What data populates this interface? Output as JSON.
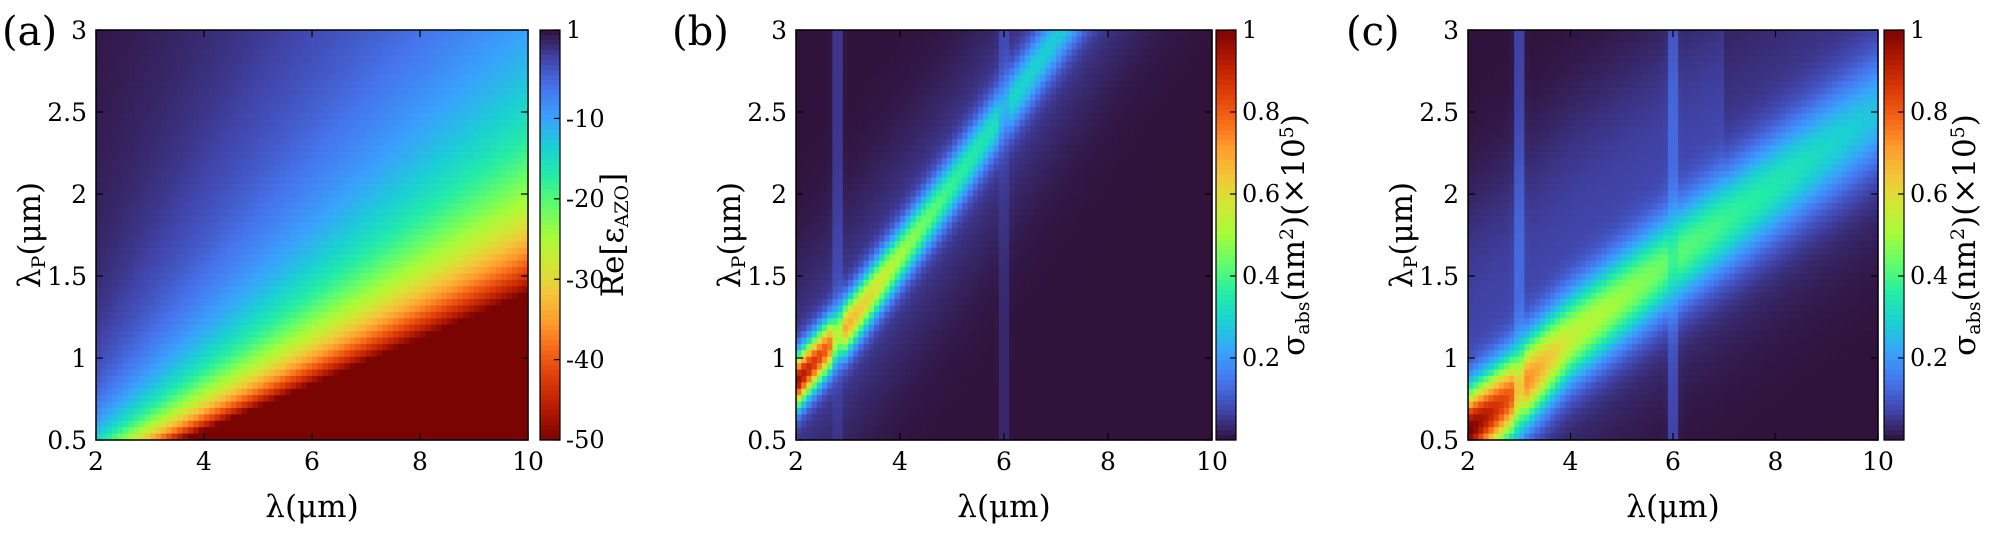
{
  "colormap": [
    "#30123b",
    "#4145ab",
    "#4675ed",
    "#39a2fc",
    "#1bcfd4",
    "#24eca6",
    "#61fc6c",
    "#a4fc3b",
    "#d1e834",
    "#f3c63a",
    "#fe9b2d",
    "#f36315",
    "#d93806",
    "#b11901",
    "#7a0402"
  ],
  "chart_data": [
    {
      "type": "heatmap",
      "panel_label": "(a)",
      "xlabel": "λ(μm)",
      "ylabel": "λP(μm)",
      "ylabel_main": "λ",
      "ylabel_sub": "P",
      "ylabel_rest": "(μm)",
      "xlim": [
        2,
        10
      ],
      "ylim": [
        0.5,
        3
      ],
      "xticks": [
        "2",
        "4",
        "6",
        "8",
        "10"
      ],
      "yticks": [
        "0.5",
        "1",
        "1.5",
        "2",
        "2.5",
        "3"
      ],
      "colorbar": {
        "label": "Re[εAZO]",
        "label_main": "Re[ε",
        "label_sub": "AZO",
        "label_rest": "]",
        "range": [
          -50,
          1
        ],
        "ticks": [
          "1",
          "-10",
          "-20",
          "-30",
          "-40",
          "-50"
        ],
        "tick_values": [
          1,
          -10,
          -20,
          -30,
          -40,
          -50
        ]
      },
      "model": "permittivity"
    },
    {
      "type": "heatmap",
      "panel_label": "(b)",
      "xlabel": "λ(μm)",
      "ylabel": "λP(μm)",
      "ylabel_main": "λ",
      "ylabel_sub": "P",
      "ylabel_rest": "(μm)",
      "xlim": [
        2,
        10
      ],
      "ylim": [
        0.5,
        3
      ],
      "xticks": [
        "2",
        "4",
        "6",
        "8",
        "10"
      ],
      "yticks": [
        "0.5",
        "1",
        "1.5",
        "2",
        "2.5",
        "3"
      ],
      "colorbar": {
        "label": "σabs(nm2)(×105)",
        "label_main": "σ",
        "label_sub": "abs",
        "label_mid": "(nm",
        "label_sup1": "2",
        "label_mid2": ")(×10",
        "label_sup2": "5",
        "label_rest": ")",
        "range": [
          0,
          1
        ],
        "ticks": [
          "1",
          "0.8",
          "0.6",
          "0.4",
          "0.2"
        ],
        "tick_values": [
          1,
          0.8,
          0.6,
          0.4,
          0.2
        ]
      },
      "model": "absorption_b",
      "ridge": {
        "x": [
          2.0,
          3.0,
          4.0,
          5.0,
          6.0,
          7.0
        ],
        "y": [
          0.85,
          1.2,
          1.62,
          2.05,
          2.5,
          2.95
        ],
        "peak": [
          0.9,
          0.62,
          0.44,
          0.32,
          0.25,
          0.22
        ]
      },
      "stripes_x": [
        2.8,
        6.0
      ]
    },
    {
      "type": "heatmap",
      "panel_label": "(c)",
      "xlabel": "λ(μm)",
      "ylabel": "λP(μm)",
      "ylabel_main": "λ",
      "ylabel_sub": "P",
      "ylabel_rest": "(μm)",
      "xlim": [
        2,
        10
      ],
      "ylim": [
        0.5,
        3
      ],
      "xticks": [
        "2",
        "4",
        "6",
        "8",
        "10"
      ],
      "yticks": [
        "0.5",
        "1",
        "1.5",
        "2",
        "2.5",
        "3"
      ],
      "colorbar": {
        "label": "σabs(nm2)(×105)",
        "label_main": "σ",
        "label_sub": "abs",
        "label_mid": "(nm",
        "label_sup1": "2",
        "label_mid2": ")(×10",
        "label_sup2": "5",
        "label_rest": ")",
        "range": [
          0,
          1
        ],
        "ticks": [
          "1",
          "0.8",
          "0.6",
          "0.4",
          "0.2"
        ],
        "tick_values": [
          1,
          0.8,
          0.6,
          0.4,
          0.2
        ]
      },
      "model": "absorption_c",
      "ridge": {
        "x": [
          2.0,
          2.8,
          4.0,
          6.0,
          8.0,
          10.0
        ],
        "y": [
          0.55,
          0.75,
          1.12,
          1.6,
          2.05,
          2.5
        ],
        "peak": [
          0.95,
          0.75,
          0.48,
          0.36,
          0.28,
          0.2
        ]
      },
      "stripes_x": [
        3.0,
        6.0
      ]
    }
  ]
}
